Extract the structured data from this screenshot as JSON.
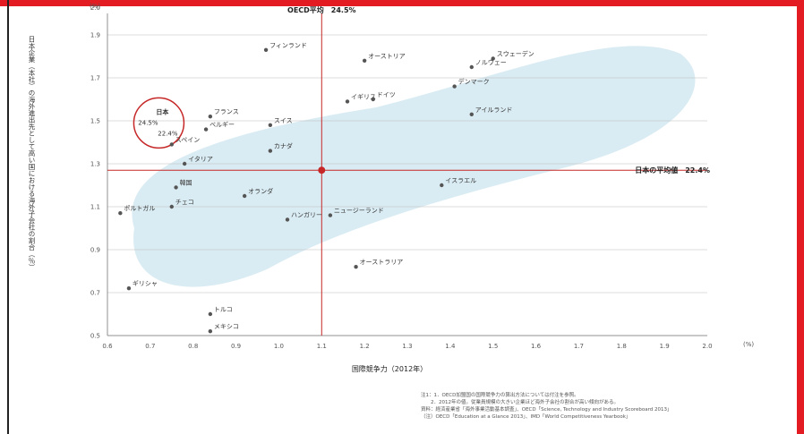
{
  "chart_data": {
    "type": "scatter",
    "ylabel": "日本企業（本社）の海外進出先として高い国における海外子会社の割合（％）",
    "xlabel": "国際競争力（2012年）",
    "y_unit": "(%)",
    "x_unit": "(%)",
    "xlim": [
      0.6,
      2.0
    ],
    "ylim": [
      0.5,
      2.0
    ],
    "x_ticks": [
      "0.6",
      "0.7",
      "0.8",
      "0.9",
      "1.0",
      "1.1",
      "1.2",
      "1.3",
      "1.4",
      "1.5",
      "1.6",
      "1.7",
      "1.8",
      "1.9",
      "2.0"
    ],
    "y_ticks": [
      "0.5",
      "0.7",
      "0.9",
      "1.1",
      "1.3",
      "1.5",
      "1.7",
      "1.9",
      "2.0"
    ],
    "vertical_ref": {
      "x": 1.1,
      "label": "OECD平均　24.5%"
    },
    "horizontal_ref": {
      "y": 1.27,
      "label": "日本の平均値　22.4%"
    },
    "highlight_circle": {
      "x": 0.72,
      "y": 1.49,
      "labels": [
        "日本",
        "24.5%",
        "22.4%"
      ]
    },
    "points": [
      {
        "label": "フィンランド",
        "x": 0.97,
        "y": 1.83
      },
      {
        "label": "オーストリア",
        "x": 1.2,
        "y": 1.78
      },
      {
        "label": "スウェーデン",
        "x": 1.5,
        "y": 1.79
      },
      {
        "label": "ノルウェー",
        "x": 1.45,
        "y": 1.75
      },
      {
        "label": "デンマーク",
        "x": 1.41,
        "y": 1.66
      },
      {
        "label": "イギリス",
        "x": 1.16,
        "y": 1.59
      },
      {
        "label": "ドイツ",
        "x": 1.22,
        "y": 1.6
      },
      {
        "label": "アイルランド",
        "x": 1.45,
        "y": 1.53
      },
      {
        "label": "フランス",
        "x": 0.84,
        "y": 1.52
      },
      {
        "label": "スイス",
        "x": 0.98,
        "y": 1.48
      },
      {
        "label": "ベルギー",
        "x": 0.83,
        "y": 1.46
      },
      {
        "label": "カナダ",
        "x": 0.98,
        "y": 1.36
      },
      {
        "label": "スペイン",
        "x": 0.75,
        "y": 1.39
      },
      {
        "label": "イタリア",
        "x": 0.78,
        "y": 1.3
      },
      {
        "label": "韓国",
        "x": 0.76,
        "y": 1.19
      },
      {
        "label": "オランダ",
        "x": 0.92,
        "y": 1.15
      },
      {
        "label": "イスラエル",
        "x": 1.38,
        "y": 1.2
      },
      {
        "label": "チェコ",
        "x": 0.75,
        "y": 1.1
      },
      {
        "label": "ポルトガル",
        "x": 0.63,
        "y": 1.07
      },
      {
        "label": "ハンガリー",
        "x": 1.02,
        "y": 1.04
      },
      {
        "label": "ニュージーランド",
        "x": 1.12,
        "y": 1.06
      },
      {
        "label": "オーストラリア",
        "x": 1.18,
        "y": 0.82
      },
      {
        "label": "ギリシャ",
        "x": 0.65,
        "y": 0.72
      },
      {
        "label": "トルコ",
        "x": 0.84,
        "y": 0.6
      },
      {
        "label": "メキシコ",
        "x": 0.84,
        "y": 0.52
      }
    ],
    "footnotes": [
      "注1：1．OECD加盟国の国際競争力の算出方法については付注を参照。",
      "　　2．2012年の値。従業員規模の大きい企業ほど海外子会社の割合が高い傾向がある。",
      "資料：経済産業省「海外事業活動基本調査」、OECD「Science, Technology and Industry Scoreboard 2013」",
      "（注）OECD「Education at a Glance 2013」、IMD「World Competitiveness Yearbook」"
    ]
  }
}
